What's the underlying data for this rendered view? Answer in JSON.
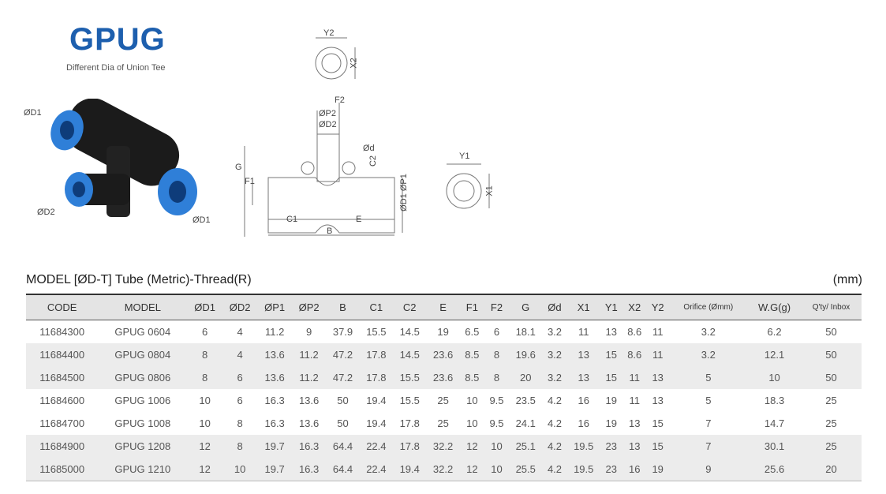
{
  "header": {
    "logo": "GPUG",
    "subtitle": "Different Dia of Union Tee"
  },
  "product_labels": {
    "d1_top": "ØD1",
    "d2": "ØD2",
    "d1_right": "ØD1"
  },
  "drawing_labels": {
    "y2": "Y2",
    "x2": "X2",
    "f2": "F2",
    "p2": "ØP2",
    "d2": "ØD2",
    "d": "Ød",
    "c2": "C2",
    "g": "G",
    "f1": "F1",
    "d1p1": "ØD1 ØP1",
    "c1": "C1",
    "e": "E",
    "b": "B",
    "y1": "Y1",
    "x1": "X1"
  },
  "table": {
    "caption": "MODEL [ØD-T]  Tube (Metric)-Thread(R)",
    "unit": "(mm)",
    "columns": [
      "CODE",
      "MODEL",
      "ØD1",
      "ØD2",
      "ØP1",
      "ØP2",
      "B",
      "C1",
      "C2",
      "E",
      "F1",
      "F2",
      "G",
      "Ød",
      "X1",
      "Y1",
      "X2",
      "Y2",
      "Orifice (Ømm)",
      "W.G(g)",
      "Q'ty/ Inbox"
    ],
    "rows": [
      [
        "11684300",
        "GPUG 0604",
        "6",
        "4",
        "11.2",
        "9",
        "37.9",
        "15.5",
        "14.5",
        "19",
        "6.5",
        "6",
        "18.1",
        "3.2",
        "11",
        "13",
        "8.6",
        "11",
        "3.2",
        "6.2",
        "50"
      ],
      [
        "11684400",
        "GPUG 0804",
        "8",
        "4",
        "13.6",
        "11.2",
        "47.2",
        "17.8",
        "14.5",
        "23.6",
        "8.5",
        "8",
        "19.6",
        "3.2",
        "13",
        "15",
        "8.6",
        "11",
        "3.2",
        "12.1",
        "50"
      ],
      [
        "11684500",
        "GPUG 0806",
        "8",
        "6",
        "13.6",
        "11.2",
        "47.2",
        "17.8",
        "15.5",
        "23.6",
        "8.5",
        "8",
        "20",
        "3.2",
        "13",
        "15",
        "11",
        "13",
        "5",
        "10",
        "50"
      ],
      [
        "11684600",
        "GPUG 1006",
        "10",
        "6",
        "16.3",
        "13.6",
        "50",
        "19.4",
        "15.5",
        "25",
        "10",
        "9.5",
        "23.5",
        "4.2",
        "16",
        "19",
        "11",
        "13",
        "5",
        "18.3",
        "25"
      ],
      [
        "11684700",
        "GPUG 1008",
        "10",
        "8",
        "16.3",
        "13.6",
        "50",
        "19.4",
        "17.8",
        "25",
        "10",
        "9.5",
        "24.1",
        "4.2",
        "16",
        "19",
        "13",
        "15",
        "7",
        "14.7",
        "25"
      ],
      [
        "11684900",
        "GPUG 1208",
        "12",
        "8",
        "19.7",
        "16.3",
        "64.4",
        "22.4",
        "17.8",
        "32.2",
        "12",
        "10",
        "25.1",
        "4.2",
        "19.5",
        "23",
        "13",
        "15",
        "7",
        "30.1",
        "25"
      ],
      [
        "11685000",
        "GPUG 1210",
        "12",
        "10",
        "19.7",
        "16.3",
        "64.4",
        "22.4",
        "19.4",
        "32.2",
        "12",
        "10",
        "25.5",
        "4.2",
        "19.5",
        "23",
        "16",
        "19",
        "9",
        "25.6",
        "20"
      ]
    ],
    "shaded_rows": [
      1,
      2,
      5,
      6
    ]
  },
  "colors": {
    "brand": "#1d5fae",
    "fitting_blue": "#2f7fd8",
    "header_bg": "#e4e4e4"
  }
}
